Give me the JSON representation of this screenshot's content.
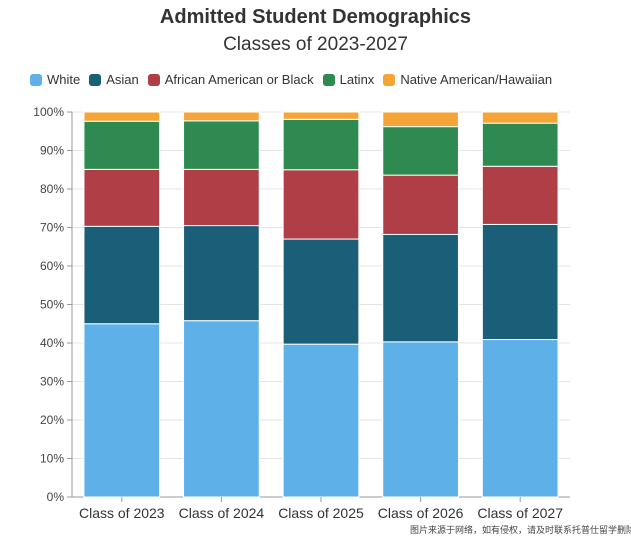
{
  "chart_data": {
    "type": "bar",
    "stacked": true,
    "title": "Admitted Student Demographics",
    "subtitle": "Classes of 2023-2027",
    "categories": [
      "Class of 2023",
      "Class of 2024",
      "Class of 2025",
      "Class of 2026",
      "Class of 2027"
    ],
    "series": [
      {
        "name": "White",
        "color": "#5db0e8",
        "values": [
          45.0,
          45.8,
          39.7,
          40.3,
          40.9
        ]
      },
      {
        "name": "Asian",
        "color": "#1b5e78",
        "values": [
          25.3,
          24.7,
          27.3,
          27.9,
          29.9
        ]
      },
      {
        "name": "African American or Black",
        "color": "#b03e47",
        "values": [
          14.8,
          14.6,
          18.0,
          15.4,
          15.1
        ]
      },
      {
        "name": "Latinx",
        "color": "#2e8a50",
        "values": [
          12.5,
          12.6,
          13.1,
          12.6,
          11.2
        ]
      },
      {
        "name": "Native American/Hawaiian",
        "color": "#f5a535",
        "values": [
          2.4,
          2.3,
          1.9,
          3.8,
          2.9
        ]
      }
    ],
    "ylim": [
      0,
      100
    ],
    "yticks": [
      "0%",
      "10%",
      "20%",
      "30%",
      "40%",
      "50%",
      "60%",
      "70%",
      "80%",
      "90%",
      "100%"
    ],
    "xlabel": "",
    "ylabel": "",
    "grid": true,
    "legend_position": "top-left"
  },
  "watermark": "图片来源于网络，如有侵权，请及时联系托普仕留学删除"
}
